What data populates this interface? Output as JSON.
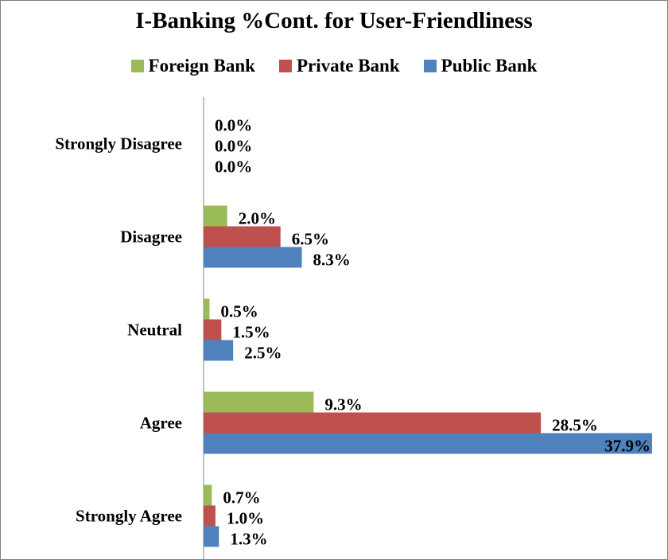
{
  "chart_data": {
    "type": "bar",
    "orientation": "horizontal",
    "title": "I-Banking %Cont. for User-Friendliness",
    "xlabel": "",
    "ylabel": "",
    "legend_position": "top",
    "grid": false,
    "categories": [
      "Strongly Disagree",
      "Disagree",
      "Neutral",
      "Agree",
      "Strongly Agree"
    ],
    "series": [
      {
        "name": "Foreign Bank",
        "color": "#9bbb59",
        "values": [
          0.0,
          2.0,
          0.5,
          9.3,
          0.7
        ],
        "labels": [
          "0.0%",
          "2.0%",
          "0.5%",
          "9.3%",
          "0.7%"
        ]
      },
      {
        "name": "Private Bank",
        "color": "#c0504d",
        "values": [
          0.0,
          6.5,
          1.5,
          28.5,
          1.0
        ],
        "labels": [
          "0.0%",
          "6.5%",
          "1.5%",
          "28.5%",
          "1.0%"
        ]
      },
      {
        "name": "Public Bank",
        "color": "#4f81bd",
        "values": [
          0.0,
          8.3,
          2.5,
          37.9,
          1.3
        ],
        "labels": [
          "0.0%",
          "8.3%",
          "2.5%",
          "37.9%",
          "1.3%"
        ]
      }
    ],
    "xlim": [
      0,
      37.9
    ]
  }
}
